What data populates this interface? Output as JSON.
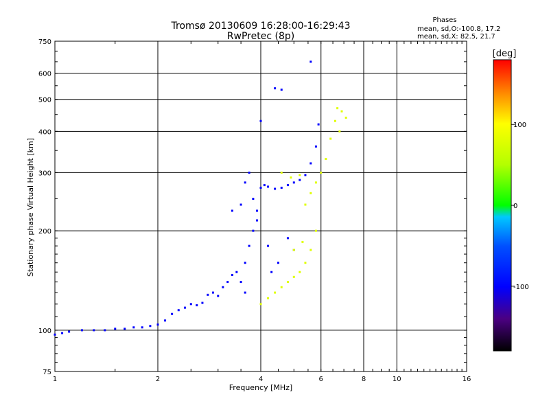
{
  "chart_data": {
    "type": "scatter",
    "title": "Tromsø 20130609 16:28:00-16:29:43",
    "subtitle": "RwPretec (8p)",
    "stats": {
      "title": "Phases",
      "line1": "mean, sd,O:-100.8, 17.2",
      "line2": "mean, sd,X: 82.5, 21.7"
    },
    "xlabel": "Frequency [MHz]",
    "ylabel": "Stationary phase Virtual Height [km]",
    "x_scale": "log",
    "y_scale": "log",
    "xlim": [
      1,
      16
    ],
    "ylim": [
      75,
      750
    ],
    "x_ticks": [
      1,
      2,
      4,
      6,
      8,
      10,
      16
    ],
    "x_tick_labels": [
      "1",
      "2",
      "4",
      "6",
      "8",
      "10",
      "16"
    ],
    "y_ticks": [
      75,
      100,
      200,
      300,
      400,
      500,
      600,
      750
    ],
    "y_tick_labels": [
      "75",
      "100",
      "200",
      "300",
      "400",
      "500",
      "600",
      "750"
    ],
    "grid": true,
    "colorbar": {
      "label": "[deg]",
      "range": [
        -180,
        180
      ],
      "ticks": [
        100,
        0,
        -100
      ],
      "tick_labels": [
        "100",
        "0",
        "-100"
      ]
    },
    "series": [
      {
        "mode": "O",
        "phase": -100,
        "points": [
          [
            1.0,
            97
          ],
          [
            1.05,
            98
          ],
          [
            1.1,
            99
          ],
          [
            1.2,
            100
          ],
          [
            1.3,
            100
          ],
          [
            1.4,
            100
          ],
          [
            1.5,
            101
          ],
          [
            1.6,
            101
          ],
          [
            1.7,
            102
          ],
          [
            1.8,
            102
          ],
          [
            1.9,
            103
          ],
          [
            2.0,
            104
          ],
          [
            2.1,
            107
          ],
          [
            2.2,
            112
          ],
          [
            2.3,
            115
          ],
          [
            2.4,
            117
          ],
          [
            2.5,
            120
          ],
          [
            2.6,
            119
          ],
          [
            2.7,
            121
          ],
          [
            2.8,
            128
          ],
          [
            2.9,
            130
          ],
          [
            3.0,
            127
          ],
          [
            3.1,
            135
          ],
          [
            3.2,
            140
          ],
          [
            3.3,
            147
          ],
          [
            3.4,
            150
          ],
          [
            3.5,
            140
          ],
          [
            3.6,
            160
          ],
          [
            3.7,
            180
          ],
          [
            3.8,
            200
          ],
          [
            3.9,
            215
          ],
          [
            3.5,
            240
          ],
          [
            3.6,
            280
          ],
          [
            3.7,
            300
          ],
          [
            3.8,
            250
          ],
          [
            3.9,
            230
          ],
          [
            4.0,
            270
          ],
          [
            4.1,
            275
          ],
          [
            4.2,
            272
          ],
          [
            4.4,
            268
          ],
          [
            4.6,
            270
          ],
          [
            4.8,
            275
          ],
          [
            5.0,
            280
          ],
          [
            5.2,
            285
          ],
          [
            5.4,
            295
          ],
          [
            5.6,
            320
          ],
          [
            5.8,
            360
          ],
          [
            5.9,
            420
          ],
          [
            4.4,
            540
          ],
          [
            4.6,
            535
          ],
          [
            5.6,
            650
          ],
          [
            4.0,
            430
          ],
          [
            4.2,
            180
          ],
          [
            4.5,
            160
          ],
          [
            4.8,
            190
          ],
          [
            5.0,
            175
          ],
          [
            4.3,
            150
          ],
          [
            3.3,
            230
          ],
          [
            3.6,
            130
          ]
        ]
      },
      {
        "mode": "X",
        "phase": 80,
        "points": [
          [
            4.0,
            120
          ],
          [
            4.2,
            125
          ],
          [
            4.4,
            130
          ],
          [
            4.6,
            135
          ],
          [
            4.8,
            140
          ],
          [
            5.0,
            145
          ],
          [
            5.2,
            150
          ],
          [
            5.4,
            160
          ],
          [
            5.6,
            175
          ],
          [
            5.8,
            200
          ],
          [
            5.0,
            175
          ],
          [
            5.3,
            185
          ],
          [
            5.4,
            240
          ],
          [
            5.6,
            260
          ],
          [
            5.8,
            280
          ],
          [
            6.0,
            300
          ],
          [
            6.2,
            330
          ],
          [
            6.4,
            380
          ],
          [
            6.6,
            430
          ],
          [
            6.7,
            470
          ],
          [
            6.9,
            460
          ],
          [
            7.1,
            440
          ],
          [
            4.6,
            300
          ],
          [
            4.9,
            290
          ],
          [
            5.2,
            295
          ],
          [
            6.8,
            400
          ]
        ]
      }
    ]
  }
}
